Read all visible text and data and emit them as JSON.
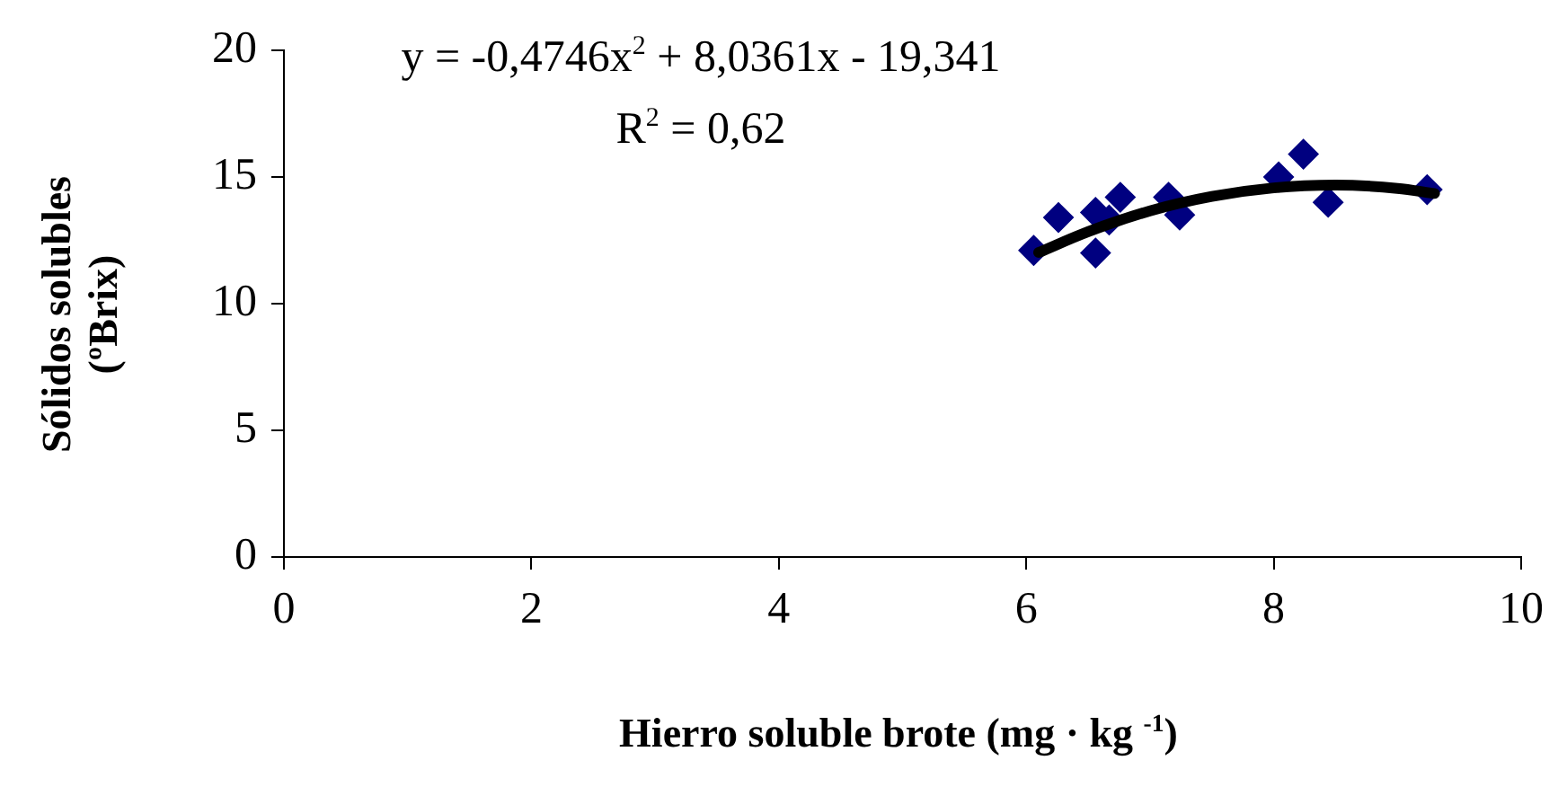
{
  "chart_data": {
    "type": "scatter",
    "xlabel": "Hierro soluble brote (mg · kg $^{-1}$)",
    "ylabel": "Sólidos solubles (ºBrix)",
    "xlim": [
      0,
      10
    ],
    "xticks": [
      0,
      2,
      4,
      6,
      8,
      10
    ],
    "ylim": [
      0,
      20
    ],
    "yticks": [
      0,
      5,
      10,
      15,
      20
    ],
    "grid": false,
    "legend": false,
    "marker": "diamond",
    "annotations": [
      "y = -0,4746x$^{2}$ + 8,0361x - 19,341",
      "R$^{2}$ = 0,62"
    ],
    "series": [
      {
        "color": "#000080",
        "x": [
          6.06,
          6.26,
          6.56,
          6.56,
          6.67,
          6.76,
          7.15,
          7.24,
          8.04,
          8.24,
          8.44,
          9.24
        ],
        "values": [
          12.1,
          13.4,
          12.0,
          13.6,
          13.3,
          14.2,
          14.2,
          13.5,
          15.0,
          15.9,
          14.0,
          14.5
        ]
      },
      {
        "type": "line",
        "color": "#000000",
        "marker": "none",
        "line_style": "solid",
        "x": [
          6.1,
          6.5,
          7,
          7.5,
          8,
          8.5,
          9,
          9.3
        ],
        "values": [
          12.02,
          12.84,
          13.66,
          14.23,
          14.57,
          14.68,
          14.55,
          14.35
        ]
      }
    ]
  }
}
